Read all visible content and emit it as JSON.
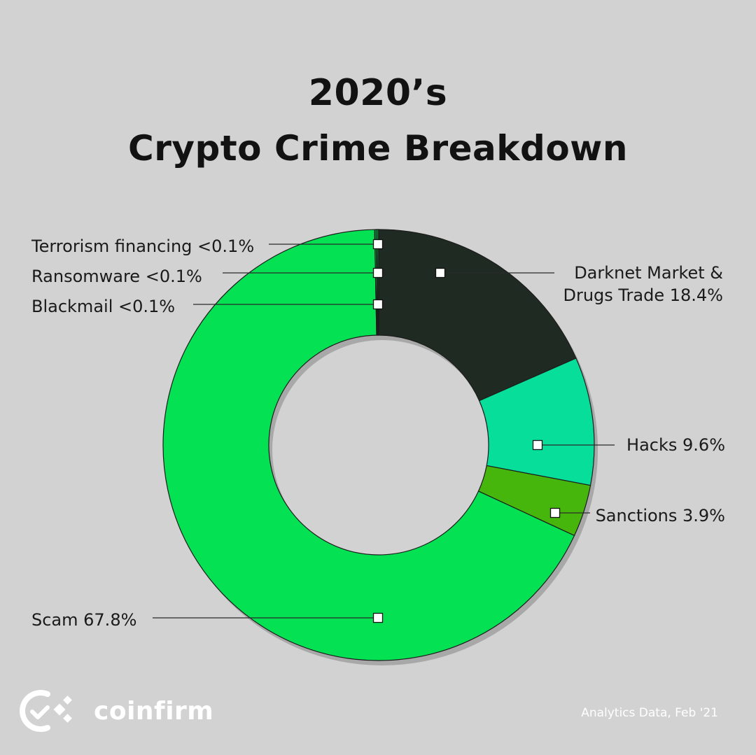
{
  "title": {
    "line1": "2020’s",
    "line2": "Crypto Crime Breakdown"
  },
  "chart_data": {
    "type": "pie",
    "subtype": "donut",
    "slices": [
      {
        "label": "Darknet Market & Drugs Trade 18.4%",
        "name": "Darknet Market & Drugs Trade",
        "value": 18.4,
        "color": "#1f2b22"
      },
      {
        "label": "Hacks 9.6%",
        "name": "Hacks",
        "value": 9.6,
        "color": "#06de9a"
      },
      {
        "label": "Sanctions 3.9%",
        "name": "Sanctions",
        "value": 3.9,
        "color": "#46b60d"
      },
      {
        "label": "Scam 67.8%",
        "name": "Scam",
        "value": 67.8,
        "color": "#04e152"
      },
      {
        "label": "Blackmail  <0.1%",
        "name": "Blackmail",
        "value": 0.1,
        "color": "#04e152"
      },
      {
        "label": "Ransomware  <0.1%",
        "name": "Ransomware",
        "value": 0.1,
        "color": "#04e152"
      },
      {
        "label": "Terrorism financing <0.1%",
        "name": "Terrorism financing",
        "value": 0.1,
        "color": "#04e152"
      }
    ],
    "label_lines": {
      "darknet": [
        "Darknet Market &",
        "Drugs Trade 18.4%"
      ]
    }
  },
  "brand": {
    "name": "coinfirm",
    "logo_icon": "coinfirm-logo-icon"
  },
  "footer": {
    "note": "Analytics Data, Feb '21"
  },
  "colors": {
    "background": "#d2d2d3",
    "marker": "#ffffff",
    "leader_line": "#2a2a2a"
  }
}
